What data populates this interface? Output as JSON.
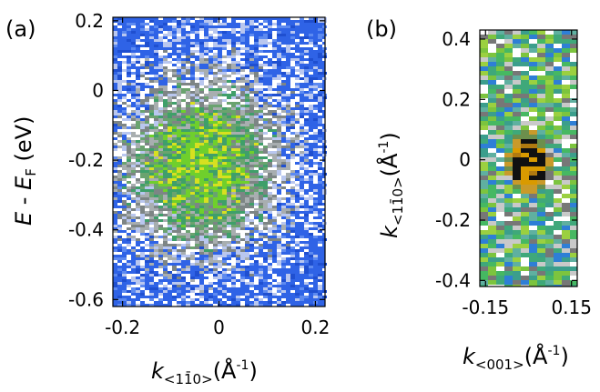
{
  "chart_data": [
    {
      "type": "heatmap",
      "panel": "(a)",
      "xlabel": "k<1-10>(Å-1)",
      "ylabel": "E - EF (eV)",
      "xlim": [
        -0.22,
        0.22
      ],
      "ylim": [
        -0.62,
        0.21
      ],
      "xticks": [
        "-0.2",
        "0",
        "0.2"
      ],
      "yticks": [
        "0.2",
        "0",
        "-0.2",
        "-0.4",
        "-0.6"
      ],
      "xtick_values": [
        -0.2,
        0,
        0.2
      ],
      "ytick_values": [
        0.2,
        0,
        -0.2,
        -0.4,
        -0.6
      ],
      "colors": {
        "background": "#2f63e6",
        "low": "#ffffff",
        "mid": "#7b8f83",
        "high": "#7fdc28"
      },
      "intensity_blob": {
        "center_k": -0.04,
        "center_E": -0.21,
        "extent_k": 0.11,
        "extent_E": 0.17
      }
    },
    {
      "type": "heatmap",
      "panel": "(b)",
      "xlabel": "k<001>(Å-1)",
      "ylabel": "k<1-10>(Å-1)",
      "xlim": [
        -0.17,
        0.17
      ],
      "ylim": [
        -0.42,
        0.43
      ],
      "xticks": [
        "-0.15",
        "0.15"
      ],
      "yticks": [
        "0.4",
        "0.2",
        "0",
        "-0.2",
        "-0.4"
      ],
      "xtick_values": [
        -0.15,
        0.15
      ],
      "ytick_values": [
        0.4,
        0.2,
        0,
        -0.2,
        -0.4
      ],
      "colors": {
        "background": "#3fa87a",
        "hot": "#e0a000",
        "peak": "#111111"
      },
      "intensity_blob": {
        "center_x": 0.0,
        "center_y": -0.01,
        "extent_x": 0.06,
        "extent_y": 0.085
      }
    }
  ],
  "labels": {
    "panel_a": "(a)",
    "panel_b": "(b)",
    "a_xlabel_k": "k",
    "a_xlabel_sub": "<11̄0>",
    "a_xlabel_unit": "(Å",
    "a_xlabel_exp": "-1",
    "a_xlabel_close": ")",
    "a_ylabel_E": "E",
    "a_ylabel_minus": " - ",
    "a_ylabel_EF": "E",
    "a_ylabel_F": "F",
    "a_ylabel_unit": " (eV)",
    "b_xlabel_k": "k",
    "b_xlabel_sub": "<001>",
    "b_xlabel_unit": "(Å",
    "b_xlabel_exp": "-1",
    "b_xlabel_close": ")",
    "b_ylabel_k": "k",
    "b_ylabel_sub": "<11̄0>",
    "b_ylabel_unit": "(Å",
    "b_ylabel_exp": "-1",
    "b_ylabel_close": ")"
  }
}
